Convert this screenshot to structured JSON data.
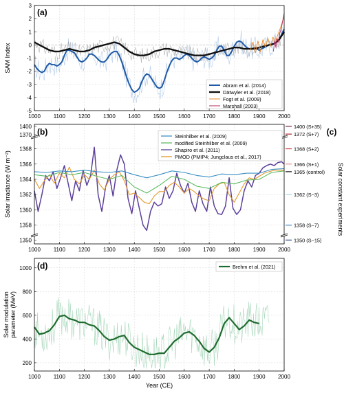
{
  "chart_data": [
    {
      "panel_label": "(a)",
      "type": "line",
      "ylabel": "SAM Index",
      "xlim": [
        1000,
        2000
      ],
      "ylim": [
        -5,
        3
      ],
      "x_ticks": [
        1000,
        1100,
        1200,
        1300,
        1400,
        1500,
        1600,
        1700,
        1800,
        1900,
        2000
      ],
      "y_ticks": [
        -5,
        -4,
        -3,
        -2,
        -1,
        0,
        1,
        2,
        3
      ],
      "legend": {
        "position": "bottom-right",
        "entries": [
          "Abram et al. (2014)",
          "Dätwyler et al. (2018)",
          "Fogt et al. (2009)",
          "Marshall (2003)"
        ]
      },
      "series": [
        {
          "name": "Abram et al. (2014)",
          "color": "#1f5aa6",
          "x": [
            1000,
            1010,
            1020,
            1030,
            1040,
            1050,
            1060,
            1070,
            1080,
            1090,
            1100,
            1110,
            1120,
            1130,
            1140,
            1150,
            1160,
            1170,
            1180,
            1190,
            1200,
            1210,
            1220,
            1230,
            1240,
            1250,
            1260,
            1270,
            1280,
            1290,
            1300,
            1310,
            1320,
            1330,
            1340,
            1350,
            1360,
            1370,
            1380,
            1390,
            1400,
            1410,
            1420,
            1430,
            1440,
            1450,
            1460,
            1470,
            1480,
            1490,
            1500,
            1510,
            1520,
            1530,
            1540,
            1550,
            1560,
            1570,
            1580,
            1590,
            1600,
            1610,
            1620,
            1630,
            1640,
            1650,
            1660,
            1670,
            1680,
            1690,
            1700,
            1710,
            1720,
            1730,
            1740,
            1750,
            1760,
            1770,
            1780,
            1790,
            1800,
            1810,
            1820,
            1830,
            1840,
            1850,
            1860,
            1870,
            1880,
            1890,
            1900,
            1910,
            1920,
            1930,
            1940,
            1950,
            1960,
            1970,
            1980,
            1990,
            2000
          ],
          "y": [
            -1.5,
            -1.8,
            -2.0,
            -2.1,
            -2.0,
            -1.6,
            -1.4,
            -1.5,
            -1.5,
            -1.6,
            -1.5,
            -1.3,
            -0.8,
            -0.4,
            -0.4,
            -0.5,
            -0.6,
            -0.9,
            -1.2,
            -1.3,
            -1.2,
            -1.0,
            -0.7,
            -0.7,
            -0.8,
            -1.0,
            -1.2,
            -1.3,
            -1.3,
            -1.1,
            -0.8,
            -0.6,
            -0.5,
            -0.5,
            -0.8,
            -1.3,
            -1.9,
            -2.5,
            -3.0,
            -3.4,
            -3.6,
            -3.5,
            -3.3,
            -2.8,
            -2.4,
            -2.2,
            -2.3,
            -2.6,
            -2.9,
            -3.2,
            -3.3,
            -3.2,
            -2.7,
            -2.1,
            -1.6,
            -1.2,
            -1.0,
            -1.0,
            -1.1,
            -1.0,
            -0.8,
            -0.7,
            -0.8,
            -1.0,
            -1.2,
            -1.3,
            -1.2,
            -1.0,
            -0.9,
            -1.0,
            -1.1,
            -1.0,
            -0.8,
            -0.4,
            -0.1,
            -0.1,
            -0.4,
            -0.8,
            -0.8,
            -0.5,
            -0.1,
            0.2,
            0.3,
            0.2,
            0.0,
            -0.2,
            -0.3,
            -0.3,
            -0.2,
            -0.3,
            -0.4,
            -0.3,
            -0.2,
            -0.1,
            0.0,
            0.0,
            0.1,
            0.2,
            0.4,
            0.8,
            1.2
          ]
        },
        {
          "name": "Dätwyler et al. (2018)",
          "color": "#111111",
          "x": [
            1000,
            1020,
            1040,
            1060,
            1080,
            1100,
            1120,
            1140,
            1160,
            1180,
            1200,
            1220,
            1240,
            1260,
            1280,
            1300,
            1320,
            1340,
            1360,
            1380,
            1400,
            1420,
            1440,
            1460,
            1480,
            1500,
            1520,
            1540,
            1560,
            1580,
            1600,
            1620,
            1640,
            1660,
            1680,
            1700,
            1720,
            1740,
            1760,
            1780,
            1800,
            1820,
            1840,
            1860,
            1880,
            1900,
            1920,
            1940,
            1960,
            1980,
            2000
          ],
          "y": [
            0.2,
            0.0,
            -0.2,
            -0.4,
            -0.5,
            -0.5,
            -0.4,
            -0.3,
            -0.4,
            -0.5,
            -0.5,
            -0.4,
            -0.2,
            -0.1,
            0.0,
            0.1,
            0.2,
            0.1,
            -0.2,
            -0.5,
            -0.7,
            -0.8,
            -0.8,
            -0.7,
            -0.5,
            -0.4,
            -0.3,
            -0.3,
            -0.4,
            -0.5,
            -0.6,
            -0.7,
            -0.8,
            -0.8,
            -0.8,
            -0.7,
            -0.6,
            -0.5,
            -0.4,
            -0.3,
            -0.2,
            -0.2,
            -0.3,
            -0.3,
            -0.3,
            -0.2,
            -0.1,
            0.0,
            0.1,
            0.4,
            1.0
          ]
        },
        {
          "name": "Fogt et al. (2009)",
          "color": "#e8892b",
          "x": [
            1865,
            1875,
            1885,
            1895,
            1905,
            1915,
            1925,
            1935,
            1945,
            1955,
            1965,
            1975,
            1985,
            1995,
            2000
          ],
          "y": [
            -0.4,
            0.2,
            -0.6,
            0.3,
            -0.5,
            0.4,
            -0.2,
            0.5,
            -0.1,
            0.6,
            0.2,
            0.8,
            1.3,
            1.9,
            2.1
          ]
        },
        {
          "name": "Marshall (2003)",
          "color": "#b52a5a",
          "x": [
            1957,
            1962,
            1967,
            1972,
            1977,
            1982,
            1987,
            1992,
            1997,
            2000
          ],
          "y": [
            -0.5,
            0.3,
            -0.2,
            0.5,
            0.2,
            0.9,
            1.1,
            1.6,
            2.1,
            2.4
          ]
        }
      ]
    },
    {
      "panel_label": "(b)",
      "type": "line",
      "ylabel": "Solar irradiance (W m⁻²)",
      "xlim": [
        1000,
        2000
      ],
      "y_ticks_upper": [
        1370,
        1400
      ],
      "y_ticks_main": [
        1358,
        1360,
        1362,
        1364,
        1366,
        1368
      ],
      "y_ticks_lower": [
        1350
      ],
      "axis_break": "upper 1370–1400, main 1357–1369, lower 1350",
      "legend": {
        "position": "top-right",
        "entries": [
          "Steinhilber et al. (2009)",
          "modified Steinhilber et al. (2009)",
          "Shapiro et al. (2011)",
          "PMOD (PMIP4; Jungclaus et al., 2017)"
        ]
      },
      "series": [
        {
          "name": "Steinhilber et al. (2009)",
          "color": "#3a8fc4",
          "x": [
            1000,
            1050,
            1100,
            1150,
            1200,
            1250,
            1300,
            1350,
            1400,
            1450,
            1500,
            1550,
            1600,
            1650,
            1700,
            1750,
            1800,
            1850,
            1900,
            1950,
            2000
          ],
          "y": [
            1365.0,
            1364.9,
            1365.1,
            1365.0,
            1365.2,
            1365.0,
            1364.9,
            1365.1,
            1364.6,
            1364.2,
            1364.6,
            1365.1,
            1364.9,
            1364.5,
            1364.3,
            1364.7,
            1364.6,
            1364.8,
            1364.8,
            1365.3,
            1365.4
          ]
        },
        {
          "name": "modified Steinhilber et al. (2009)",
          "color": "#5dbb63",
          "x": [
            1000,
            1050,
            1100,
            1150,
            1200,
            1250,
            1300,
            1350,
            1400,
            1450,
            1500,
            1550,
            1600,
            1650,
            1700,
            1750,
            1800,
            1850,
            1900,
            1950,
            2000
          ],
          "y": [
            1364.6,
            1364.4,
            1364.9,
            1364.6,
            1364.9,
            1364.4,
            1364.0,
            1364.5,
            1363.0,
            1362.2,
            1363.2,
            1364.4,
            1364.0,
            1363.1,
            1362.8,
            1363.6,
            1363.4,
            1363.9,
            1364.0,
            1364.9,
            1365.1
          ]
        },
        {
          "name": "Shapiro et al. (2011)",
          "color": "#5b3f9a",
          "x": [
            1000,
            1015,
            1030,
            1045,
            1060,
            1075,
            1090,
            1105,
            1120,
            1135,
            1150,
            1165,
            1180,
            1195,
            1210,
            1225,
            1240,
            1255,
            1270,
            1285,
            1300,
            1315,
            1330,
            1345,
            1360,
            1375,
            1390,
            1405,
            1420,
            1435,
            1450,
            1465,
            1480,
            1495,
            1510,
            1525,
            1540,
            1555,
            1570,
            1585,
            1600,
            1615,
            1630,
            1645,
            1660,
            1675,
            1690,
            1705,
            1720,
            1735,
            1750,
            1765,
            1780,
            1795,
            1810,
            1825,
            1840,
            1855,
            1870,
            1885,
            1900,
            1915,
            1930,
            1945,
            1960,
            1975,
            1990,
            2000
          ],
          "y": [
            1362.5,
            1359.8,
            1362.0,
            1364.5,
            1363.8,
            1365.0,
            1362.8,
            1364.2,
            1365.8,
            1363.5,
            1361.2,
            1363.8,
            1362.5,
            1365.2,
            1363.2,
            1364.5,
            1368.2,
            1362.0,
            1359.8,
            1363.0,
            1364.5,
            1361.8,
            1365.2,
            1367.2,
            1366.0,
            1361.5,
            1359.5,
            1362.5,
            1360.2,
            1358.0,
            1357.3,
            1359.8,
            1361.0,
            1360.5,
            1360.8,
            1363.0,
            1361.5,
            1362.5,
            1364.8,
            1363.2,
            1362.2,
            1363.5,
            1361.0,
            1359.8,
            1362.5,
            1360.8,
            1359.8,
            1363.0,
            1360.5,
            1359.5,
            1359.4,
            1360.5,
            1364.2,
            1360.2,
            1359.4,
            1360.0,
            1362.5,
            1363.8,
            1363.0,
            1364.5,
            1364.8,
            1365.5,
            1365.8,
            1366.0,
            1365.8,
            1366.2,
            1366.3,
            1366.0
          ]
        },
        {
          "name": "PMOD (PMIP4; Jungclaus et al., 2017)",
          "color": "#e3982a",
          "x": [
            1000,
            1020,
            1040,
            1060,
            1080,
            1100,
            1120,
            1140,
            1160,
            1180,
            1200,
            1220,
            1240,
            1260,
            1280,
            1300,
            1320,
            1340,
            1360,
            1380,
            1400,
            1420,
            1440,
            1460,
            1480,
            1500,
            1520,
            1540,
            1560,
            1580,
            1600,
            1620,
            1640,
            1660,
            1680,
            1700,
            1720,
            1740,
            1760,
            1780,
            1800,
            1820,
            1840,
            1860,
            1880,
            1900,
            1920,
            1940,
            1960,
            1980,
            2000
          ],
          "y": [
            1364.0,
            1362.8,
            1363.8,
            1364.6,
            1363.5,
            1364.8,
            1364.2,
            1365.6,
            1364.0,
            1363.4,
            1364.6,
            1364.0,
            1365.2,
            1363.4,
            1362.6,
            1364.0,
            1364.6,
            1365.0,
            1363.8,
            1362.0,
            1362.2,
            1361.6,
            1361.0,
            1360.8,
            1361.8,
            1362.4,
            1362.4,
            1363.2,
            1363.6,
            1363.0,
            1362.2,
            1362.8,
            1362.4,
            1361.8,
            1361.4,
            1361.2,
            1362.8,
            1363.4,
            1363.6,
            1362.0,
            1361.0,
            1362.2,
            1363.4,
            1364.2,
            1364.0,
            1364.4,
            1364.8,
            1365.0,
            1365.2,
            1365.2,
            1365.2
          ]
        }
      ]
    },
    {
      "panel_label": "(c)",
      "type": "table",
      "ylabel": "Solar constant experiments",
      "entries": [
        {
          "label": "1400 (S+35)",
          "value": 1400,
          "color": "#7a1f3d"
        },
        {
          "label": "1372 (S+7)",
          "value": 1372,
          "color": "#b02020"
        },
        {
          "label": "1368 (S+2)",
          "value": 1368,
          "color": "#d04040"
        },
        {
          "label": "1366 (S+1)",
          "value": 1366,
          "color": "#e89090"
        },
        {
          "label": "1365 (control)",
          "value": 1365,
          "color": "#111111"
        },
        {
          "label": "1362 (S−3)",
          "value": 1362,
          "color": "#a8d8ee"
        },
        {
          "label": "1358 (S−7)",
          "value": 1358,
          "color": "#3a7fc0"
        },
        {
          "label": "1350 (S−15)",
          "value": 1350,
          "color": "#1f3f8a"
        }
      ]
    },
    {
      "panel_label": "(d)",
      "type": "line",
      "ylabel_lines": [
        "Solar modulation",
        "parameter (MeV)"
      ],
      "xlabel": "Year (CE)",
      "xlim": [
        1000,
        2000
      ],
      "ylim": [
        130,
        1080
      ],
      "x_ticks": [
        1000,
        1100,
        1200,
        1300,
        1400,
        1500,
        1600,
        1700,
        1800,
        1900,
        2000
      ],
      "y_ticks": [
        200,
        400,
        600,
        800,
        1000
      ],
      "legend": {
        "position": "top-right",
        "entries": [
          "Brehm et al. (2021)"
        ]
      },
      "series": [
        {
          "name": "Brehm et al. (2021)",
          "color": "#1e6b2e",
          "x": [
            1000,
            1020,
            1040,
            1060,
            1080,
            1100,
            1120,
            1140,
            1160,
            1180,
            1200,
            1220,
            1240,
            1260,
            1280,
            1300,
            1320,
            1340,
            1360,
            1380,
            1400,
            1420,
            1440,
            1460,
            1480,
            1500,
            1520,
            1540,
            1560,
            1580,
            1600,
            1620,
            1640,
            1660,
            1680,
            1700,
            1720,
            1740,
            1760,
            1780,
            1800,
            1820,
            1840,
            1860,
            1880,
            1900
          ],
          "y": [
            500,
            440,
            450,
            470,
            520,
            590,
            600,
            570,
            560,
            540,
            540,
            520,
            510,
            470,
            420,
            390,
            400,
            420,
            430,
            370,
            330,
            310,
            290,
            270,
            270,
            280,
            280,
            330,
            380,
            410,
            450,
            460,
            430,
            380,
            320,
            290,
            330,
            410,
            530,
            580,
            530,
            480,
            510,
            560,
            540,
            530
          ]
        }
      ]
    }
  ]
}
